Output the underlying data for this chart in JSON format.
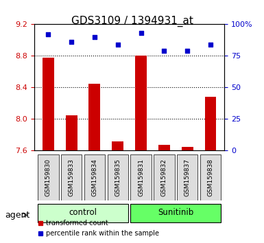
{
  "title": "GDS3109 / 1394931_at",
  "samples": [
    "GSM159830",
    "GSM159833",
    "GSM159834",
    "GSM159835",
    "GSM159831",
    "GSM159832",
    "GSM159837",
    "GSM159838"
  ],
  "groups": [
    "control",
    "control",
    "control",
    "control",
    "Sunitinib",
    "Sunitinib",
    "Sunitinib",
    "Sunitinib"
  ],
  "transformed_count": [
    8.78,
    8.05,
    8.45,
    7.72,
    8.8,
    7.67,
    7.65,
    8.28
  ],
  "percentile_rank": [
    92,
    86,
    90,
    84,
    93,
    79,
    79,
    84
  ],
  "ylim_left": [
    7.6,
    9.2
  ],
  "ylim_right": [
    0,
    100
  ],
  "yticks_left": [
    7.6,
    8.0,
    8.4,
    8.8,
    9.2
  ],
  "yticks_right": [
    0,
    25,
    50,
    75,
    100
  ],
  "bar_color": "#cc0000",
  "dot_color": "#0000cc",
  "control_bg": "#ccffcc",
  "sunitinib_bg": "#66ff66",
  "sample_bg": "#dddddd",
  "agent_label": "agent",
  "legend_bar": "transformed count",
  "legend_dot": "percentile rank within the sample",
  "group_labels": [
    "control",
    "Sunitinib"
  ],
  "group_ranges": [
    [
      0,
      4
    ],
    [
      4,
      8
    ]
  ],
  "dotted_lines": [
    8.0,
    8.4,
    8.8
  ],
  "bar_bottom": 7.6
}
